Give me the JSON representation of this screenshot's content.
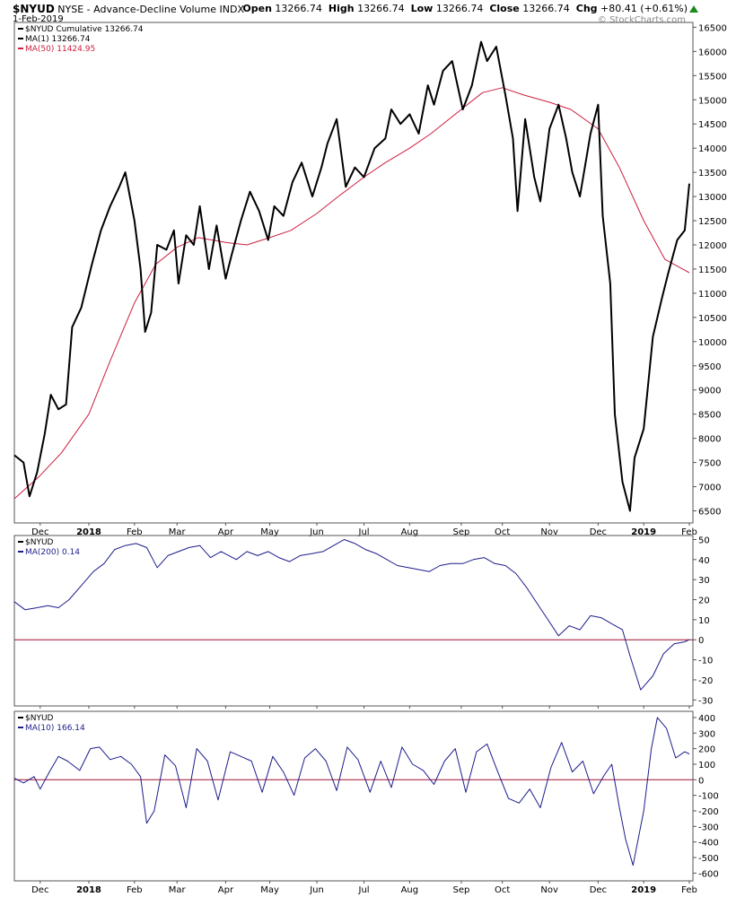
{
  "header": {
    "symbol": "$NYUD",
    "description": "NYSE - Advance-Decline Volume INDX",
    "date": "1-Feb-2019",
    "open_label": "Open",
    "open": "13266.74",
    "high_label": "High",
    "high": "13266.74",
    "low_label": "Low",
    "low": "13266.74",
    "close_label": "Close",
    "close": "13266.74",
    "chg_label": "Chg",
    "chg": "+80.41 (+0.61%)",
    "watermark": "© StockCharts.com"
  },
  "colors": {
    "price": "#000000",
    "ma50": "#cc1f3f",
    "indicator": "#1c1c8c",
    "zero_line": "#9b1030",
    "up_arrow": "#1a8a1a"
  },
  "chart_data": [
    {
      "type": "line",
      "panel": "price",
      "legend": [
        {
          "label": "$NYUD Cumulative 13266.74",
          "color": "#000000"
        },
        {
          "label": "MA(1) 13266.74",
          "color": "#000000"
        },
        {
          "label": "MA(50) 11424.95",
          "color": "#cc1f3f"
        }
      ],
      "x_tick_labels": [
        "Dec",
        "2018",
        "Feb",
        "Mar",
        "Apr",
        "May",
        "Jun",
        "Jul",
        "Aug",
        "Sep",
        "Oct",
        "Nov",
        "Dec",
        "2019",
        "Feb"
      ],
      "x_tick_bold": [
        "2018",
        "2019"
      ],
      "y_ticks": [
        6500,
        7000,
        7500,
        8000,
        8500,
        9000,
        9500,
        10000,
        10500,
        11000,
        11500,
        12000,
        12500,
        13000,
        13500,
        14000,
        14500,
        15000,
        15500,
        16000,
        16500
      ],
      "ylim": [
        6250,
        16600
      ],
      "x_dates": [
        "2017-11-14",
        "2017-12-01",
        "2018-01-02",
        "2018-02-01",
        "2018-03-01",
        "2018-04-02",
        "2018-05-01",
        "2018-06-01",
        "2018-07-02",
        "2018-08-01",
        "2018-09-04",
        "2018-10-01",
        "2018-11-01",
        "2018-12-03",
        "2019-01-02",
        "2019-02-01"
      ],
      "series": [
        {
          "name": "$NYUD Cumulative",
          "color": "#000000",
          "x": [
            "2017-11-14",
            "2017-11-20",
            "2017-11-24",
            "2017-11-29",
            "2017-12-04",
            "2017-12-08",
            "2017-12-13",
            "2017-12-18",
            "2017-12-22",
            "2017-12-28",
            "2018-01-04",
            "2018-01-10",
            "2018-01-16",
            "2018-01-22",
            "2018-01-26",
            "2018-02-01",
            "2018-02-05",
            "2018-02-08",
            "2018-02-12",
            "2018-02-16",
            "2018-02-22",
            "2018-02-27",
            "2018-03-02",
            "2018-03-07",
            "2018-03-12",
            "2018-03-16",
            "2018-03-22",
            "2018-03-27",
            "2018-04-02",
            "2018-04-06",
            "2018-04-12",
            "2018-04-18",
            "2018-04-24",
            "2018-04-30",
            "2018-05-04",
            "2018-05-10",
            "2018-05-16",
            "2018-05-22",
            "2018-05-29",
            "2018-06-04",
            "2018-06-08",
            "2018-06-14",
            "2018-06-20",
            "2018-06-26",
            "2018-07-02",
            "2018-07-09",
            "2018-07-16",
            "2018-07-20",
            "2018-07-26",
            "2018-08-01",
            "2018-08-07",
            "2018-08-13",
            "2018-08-17",
            "2018-08-23",
            "2018-08-29",
            "2018-09-05",
            "2018-09-11",
            "2018-09-17",
            "2018-09-21",
            "2018-09-27",
            "2018-10-03",
            "2018-10-08",
            "2018-10-11",
            "2018-10-16",
            "2018-10-22",
            "2018-10-26",
            "2018-11-01",
            "2018-11-07",
            "2018-11-12",
            "2018-11-16",
            "2018-11-21",
            "2018-11-28",
            "2018-12-03",
            "2018-12-06",
            "2018-12-11",
            "2018-12-14",
            "2018-12-19",
            "2018-12-24",
            "2018-12-27",
            "2019-01-02",
            "2019-01-08",
            "2019-01-14",
            "2019-01-18",
            "2019-01-24",
            "2019-01-29",
            "2019-02-01"
          ],
          "values": [
            7650,
            7500,
            6800,
            7300,
            8100,
            8900,
            8600,
            8700,
            10300,
            10700,
            11600,
            12300,
            12800,
            13200,
            13500,
            12500,
            11500,
            10200,
            10600,
            12000,
            11900,
            12300,
            11200,
            12200,
            12000,
            12800,
            11500,
            12400,
            11300,
            11800,
            12500,
            13100,
            12700,
            12100,
            12800,
            12600,
            13300,
            13700,
            13000,
            13600,
            14100,
            14600,
            13200,
            13600,
            13400,
            14000,
            14200,
            14800,
            14500,
            14700,
            14300,
            15300,
            14900,
            15600,
            15800,
            14800,
            15300,
            16200,
            15800,
            16100,
            15100,
            14200,
            12700,
            14600,
            13400,
            12900,
            14400,
            14900,
            14200,
            13500,
            13000,
            14300,
            14900,
            12600,
            11200,
            8500,
            7100,
            6500,
            7600,
            8200,
            10100,
            10900,
            11400,
            12100,
            12300,
            13266.74
          ]
        },
        {
          "name": "MA(50)",
          "color": "#cc1f3f",
          "x": [
            "2017-11-14",
            "2017-11-30",
            "2017-12-15",
            "2018-01-02",
            "2018-01-16",
            "2018-02-01",
            "2018-02-15",
            "2018-03-01",
            "2018-03-15",
            "2018-04-02",
            "2018-04-16",
            "2018-05-01",
            "2018-05-15",
            "2018-06-01",
            "2018-06-15",
            "2018-07-02",
            "2018-07-16",
            "2018-08-01",
            "2018-08-15",
            "2018-09-04",
            "2018-09-18",
            "2018-10-01",
            "2018-10-15",
            "2018-11-01",
            "2018-11-15",
            "2018-12-03",
            "2018-12-17",
            "2019-01-02",
            "2019-01-16",
            "2019-02-01"
          ],
          "values": [
            6750,
            7200,
            7700,
            8500,
            9600,
            10800,
            11600,
            11950,
            12150,
            12050,
            12000,
            12150,
            12300,
            12650,
            13000,
            13400,
            13700,
            14000,
            14300,
            14800,
            15150,
            15250,
            15100,
            14950,
            14800,
            14400,
            13600,
            12500,
            11700,
            11424.95
          ]
        }
      ]
    },
    {
      "type": "line",
      "panel": "ma200",
      "legend": [
        {
          "label": "$NYUD",
          "color": "#000000"
        },
        {
          "label": "MA(200) 0.14",
          "color": "#1c1c8c"
        }
      ],
      "y_ticks": [
        -30,
        -20,
        -10,
        0,
        10,
        20,
        30,
        40,
        50
      ],
      "ylim": [
        -33,
        52
      ],
      "x_dates": [
        "2017-11-14",
        "2017-12-01",
        "2018-01-02",
        "2018-02-01",
        "2018-03-01",
        "2018-04-02",
        "2018-05-01",
        "2018-06-01",
        "2018-07-02",
        "2018-08-01",
        "2018-09-04",
        "2018-10-01",
        "2018-11-01",
        "2018-12-03",
        "2019-01-02",
        "2019-02-01"
      ],
      "series": [
        {
          "name": "MA(200)",
          "color": "#1c1c8c",
          "x": [
            "2017-11-14",
            "2017-11-21",
            "2017-11-29",
            "2017-12-06",
            "2017-12-13",
            "2017-12-20",
            "2017-12-28",
            "2018-01-05",
            "2018-01-12",
            "2018-01-19",
            "2018-01-26",
            "2018-02-02",
            "2018-02-09",
            "2018-02-16",
            "2018-02-23",
            "2018-03-02",
            "2018-03-09",
            "2018-03-16",
            "2018-03-23",
            "2018-03-30",
            "2018-04-09",
            "2018-04-16",
            "2018-04-23",
            "2018-04-30",
            "2018-05-07",
            "2018-05-14",
            "2018-05-21",
            "2018-05-29",
            "2018-06-05",
            "2018-06-12",
            "2018-06-19",
            "2018-06-26",
            "2018-07-03",
            "2018-07-10",
            "2018-07-17",
            "2018-07-24",
            "2018-07-31",
            "2018-08-07",
            "2018-08-14",
            "2018-08-21",
            "2018-08-28",
            "2018-09-05",
            "2018-09-12",
            "2018-09-19",
            "2018-09-26",
            "2018-10-03",
            "2018-10-10",
            "2018-10-17",
            "2018-10-24",
            "2018-10-31",
            "2018-11-07",
            "2018-11-14",
            "2018-11-21",
            "2018-11-28",
            "2018-12-05",
            "2018-12-12",
            "2018-12-19",
            "2018-12-24",
            "2018-12-31",
            "2019-01-08",
            "2019-01-15",
            "2019-01-22",
            "2019-01-29",
            "2019-02-01"
          ],
          "values": [
            19,
            15,
            16,
            17,
            16,
            20,
            27,
            34,
            38,
            45,
            47,
            48,
            46,
            36,
            42,
            44,
            46,
            47,
            41,
            44,
            40,
            44,
            42,
            44,
            41,
            39,
            42,
            43,
            44,
            47,
            50,
            48,
            45,
            43,
            40,
            37,
            36,
            35,
            34,
            37,
            38,
            38,
            40,
            41,
            38,
            37,
            33,
            26,
            18,
            10,
            2,
            7,
            5,
            12,
            11,
            8,
            5,
            -8,
            -25,
            -18,
            -7,
            -2,
            -1,
            0.14
          ]
        }
      ]
    },
    {
      "type": "line",
      "panel": "ma10",
      "legend": [
        {
          "label": "$NYUD",
          "color": "#000000"
        },
        {
          "label": "MA(10) 166.14",
          "color": "#1c1c8c"
        }
      ],
      "y_ticks": [
        -600,
        -500,
        -400,
        -300,
        -200,
        -100,
        0,
        100,
        200,
        300,
        400
      ],
      "ylim": [
        -650,
        440
      ],
      "x_dates": [
        "2017-11-14",
        "2017-12-01",
        "2018-01-02",
        "2018-02-01",
        "2018-03-01",
        "2018-04-02",
        "2018-05-01",
        "2018-06-01",
        "2018-07-02",
        "2018-08-01",
        "2018-09-04",
        "2018-10-01",
        "2018-11-01",
        "2018-12-03",
        "2019-01-02",
        "2019-02-01"
      ],
      "series": [
        {
          "name": "MA(10)",
          "color": "#1c1c8c",
          "x": [
            "2017-11-14",
            "2017-11-20",
            "2017-11-27",
            "2017-12-01",
            "2017-12-07",
            "2017-12-13",
            "2017-12-19",
            "2017-12-27",
            "2018-01-03",
            "2018-01-09",
            "2018-01-16",
            "2018-01-23",
            "2018-01-30",
            "2018-02-05",
            "2018-02-09",
            "2018-02-14",
            "2018-02-21",
            "2018-02-28",
            "2018-03-07",
            "2018-03-14",
            "2018-03-21",
            "2018-03-28",
            "2018-04-05",
            "2018-04-12",
            "2018-04-19",
            "2018-04-26",
            "2018-05-03",
            "2018-05-10",
            "2018-05-17",
            "2018-05-24",
            "2018-05-31",
            "2018-06-07",
            "2018-06-14",
            "2018-06-21",
            "2018-06-28",
            "2018-07-06",
            "2018-07-13",
            "2018-07-20",
            "2018-07-27",
            "2018-08-03",
            "2018-08-10",
            "2018-08-17",
            "2018-08-24",
            "2018-08-31",
            "2018-09-07",
            "2018-09-14",
            "2018-09-21",
            "2018-09-28",
            "2018-10-05",
            "2018-10-12",
            "2018-10-19",
            "2018-10-26",
            "2018-11-02",
            "2018-11-09",
            "2018-11-16",
            "2018-11-23",
            "2018-11-30",
            "2018-12-07",
            "2018-12-12",
            "2018-12-17",
            "2018-12-21",
            "2018-12-26",
            "2019-01-02",
            "2019-01-07",
            "2019-01-11",
            "2019-01-17",
            "2019-01-23",
            "2019-01-29",
            "2019-02-01"
          ],
          "values": [
            10,
            -20,
            20,
            -60,
            50,
            150,
            120,
            60,
            200,
            210,
            130,
            150,
            100,
            20,
            -280,
            -200,
            160,
            90,
            -180,
            200,
            120,
            -130,
            180,
            150,
            120,
            -80,
            150,
            50,
            -100,
            140,
            200,
            120,
            -70,
            210,
            130,
            -80,
            120,
            -50,
            210,
            100,
            60,
            -30,
            120,
            200,
            -80,
            180,
            230,
            50,
            -120,
            -150,
            -60,
            -180,
            80,
            240,
            50,
            120,
            -90,
            30,
            100,
            -180,
            -380,
            -550,
            -200,
            200,
            400,
            330,
            140,
            180,
            166.14
          ]
        }
      ]
    }
  ]
}
